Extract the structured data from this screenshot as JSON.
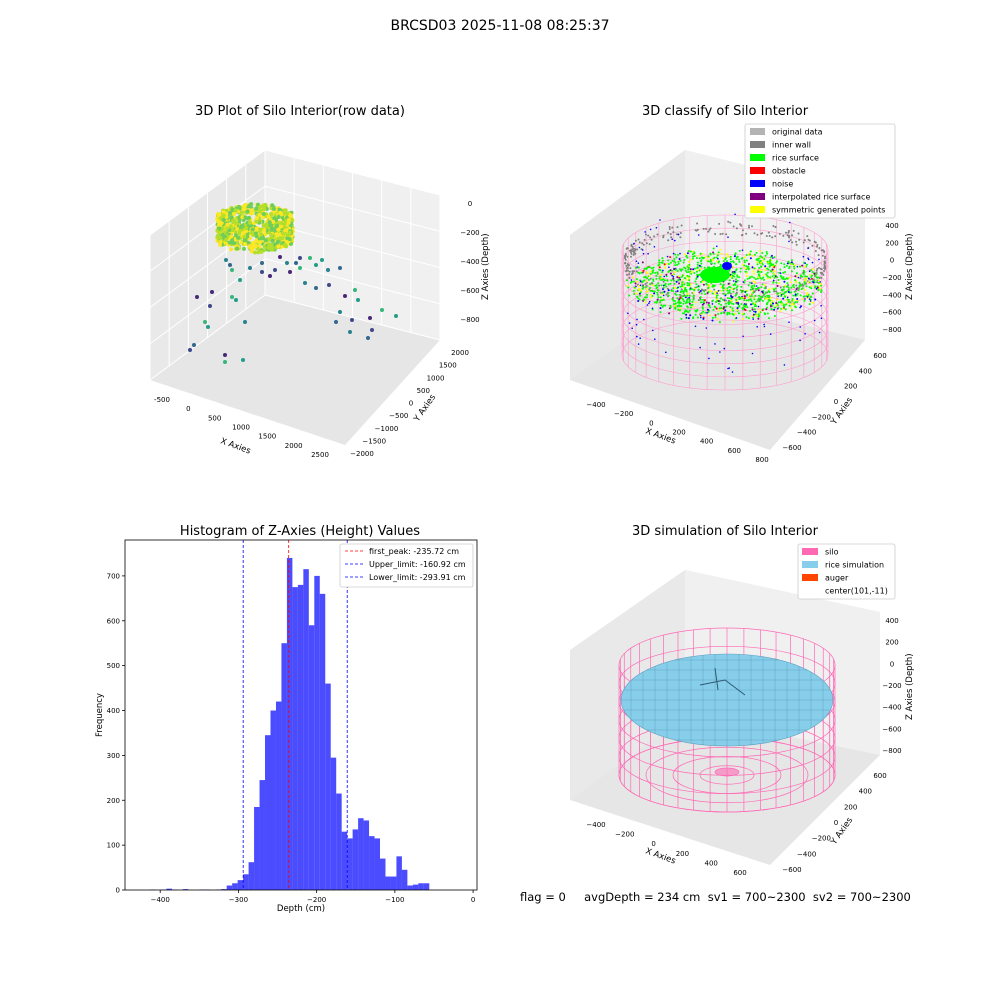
{
  "figure": {
    "title": "BRCSD03 2025-11-08 08:25:37",
    "footer": "flag = 0     avgDepth = 234 cm  sv1 = 700~2300  sv2 = 700~2300"
  },
  "panels": {
    "raw": {
      "title": "3D Plot of Silo Interior(row data)",
      "xlabel": "X Axies",
      "ylabel": "Y Axies",
      "zlabel": "Z Axies (Depth)",
      "xticks": [
        "-500",
        "0",
        "500",
        "1000",
        "1500",
        "2000",
        "2500"
      ],
      "yticks": [
        "2000",
        "1500",
        "1000",
        "500",
        "0",
        "−500",
        "−1000",
        "−1500",
        "−2000"
      ],
      "zticks": [
        "0",
        "−200",
        "−400",
        "−600",
        "−800"
      ]
    },
    "classify": {
      "title": "3D classify of Silo Interior",
      "xlabel": "X Axies",
      "ylabel": "Y Axies",
      "zlabel": "Z Axies (Depth)",
      "xticks": [
        "−400",
        "−200",
        "0",
        "200",
        "400",
        "600",
        "800"
      ],
      "yticks": [
        "600",
        "400",
        "200",
        "0",
        "−200",
        "−400",
        "−600"
      ],
      "zticks": [
        "400",
        "200",
        "0",
        "−200",
        "−400",
        "−600",
        "−800"
      ],
      "legend": [
        {
          "label": "original data",
          "color": "#b3b3b3"
        },
        {
          "label": "inner wall",
          "color": "#808080"
        },
        {
          "label": "rice surface",
          "color": "#00ff00"
        },
        {
          "label": "obstacle",
          "color": "#ff0000"
        },
        {
          "label": "noise",
          "color": "#0000ff"
        },
        {
          "label": "interpolated rice surface",
          "color": "#800080"
        },
        {
          "label": "symmetric generated points",
          "color": "#ffff00"
        }
      ]
    },
    "simulation": {
      "title": "3D simulation of Silo Interior",
      "xlabel": "X Axies",
      "ylabel": "Y Axies",
      "zlabel": "Z Axies (Depth)",
      "xticks": [
        "−400",
        "−200",
        "0",
        "200",
        "400",
        "600"
      ],
      "yticks": [
        "600",
        "400",
        "200",
        "0",
        "−200",
        "−400",
        "−600"
      ],
      "zticks": [
        "400",
        "200",
        "0",
        "−200",
        "−400",
        "−600",
        "−800"
      ],
      "legend": [
        {
          "label": "silo",
          "color": "#ff69b4"
        },
        {
          "label": "rice simulation",
          "color": "#87ceeb"
        },
        {
          "label": "auger",
          "color": "#ff4500"
        },
        {
          "label": "center(101,-11)",
          "color": "#ffffff"
        }
      ]
    }
  },
  "chart_data": {
    "type": "bar",
    "title": "Histogram of Z-Axies (Height) Values",
    "xlabel": "Depth (cm)",
    "ylabel": "Frequency",
    "xlim": [
      -445,
      5
    ],
    "ylim": [
      0,
      780
    ],
    "xticks": [
      -400,
      -300,
      -200,
      -100,
      0
    ],
    "yticks": [
      0,
      100,
      200,
      300,
      400,
      500,
      600,
      700
    ],
    "xtick_labels": [
      "−400",
      "−300",
      "−200",
      "−100",
      "0"
    ],
    "bar_color": "#0000ff",
    "bin_start": -420,
    "bin_width": 7,
    "values": [
      0,
      1,
      0,
      1,
      3,
      1,
      0,
      2,
      0,
      0,
      1,
      1,
      0,
      1,
      2,
      10,
      15,
      22,
      35,
      62,
      185,
      245,
      345,
      400,
      420,
      550,
      740,
      675,
      680,
      715,
      590,
      700,
      660,
      460,
      295,
      215,
      130,
      115,
      135,
      160,
      155,
      120,
      115,
      70,
      30,
      30,
      75,
      45,
      10,
      12,
      15,
      15
    ],
    "lines": [
      {
        "label": "first_peak: -235.72 cm",
        "x": -235.72,
        "color": "#ff0000"
      },
      {
        "label": "Upper_limit: -160.92 cm",
        "x": -160.92,
        "color": "#0000ff"
      },
      {
        "label": "Lower_limit: -293.91 cm",
        "x": -293.91,
        "color": "#0000ff"
      }
    ]
  }
}
